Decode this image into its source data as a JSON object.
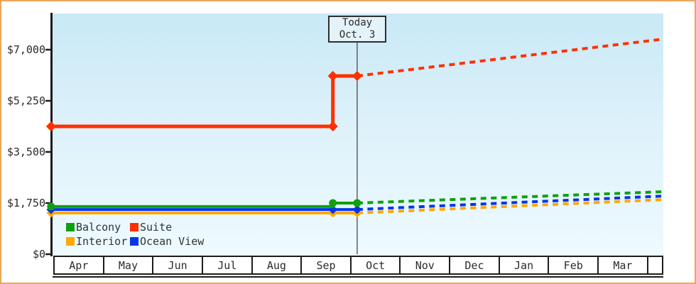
{
  "frame": {
    "border_color": "#eaa75c"
  },
  "chart_data": {
    "type": "line",
    "title": "",
    "description": "Cruise cabin price history and dashed price forecast by cabin category",
    "x_axis": {
      "categories": [
        "Apr",
        "May",
        "Jun",
        "Jul",
        "Aug",
        "Sep",
        "Oct",
        "Nov",
        "Dec",
        "Jan",
        "Feb",
        "Mar"
      ]
    },
    "y_axis": {
      "tick_labels": [
        "$0",
        "$1,750",
        "$3,500",
        "$5,250",
        "$7,000"
      ],
      "tick_values": [
        0,
        1750,
        3500,
        5250,
        7000
      ],
      "ylim": [
        0,
        8300
      ]
    },
    "grid": "off",
    "legend_position": "bottom-left-inside",
    "annotation_today": {
      "line1": "Today",
      "line2": "Oct. 3",
      "month_index": 6.11
    },
    "series": [
      {
        "name": "Interior",
        "color": "#ffa800",
        "marker": "diamond",
        "solid": [
          [
            -0.07,
            1410
          ],
          [
            6.11,
            1410
          ]
        ],
        "forecast": [
          [
            6.11,
            1410
          ],
          [
            12.3,
            1870
          ]
        ],
        "markers": [
          [
            -0.07,
            1410
          ],
          [
            5.62,
            1410
          ],
          [
            6.11,
            1410
          ]
        ]
      },
      {
        "name": "Ocean View",
        "color": "#0535e8",
        "marker": "diamond",
        "solid": [
          [
            -0.07,
            1530
          ],
          [
            6.11,
            1530
          ]
        ],
        "forecast": [
          [
            6.11,
            1530
          ],
          [
            12.3,
            1990
          ]
        ],
        "markers": [
          [
            -0.07,
            1530
          ],
          [
            5.62,
            1530
          ],
          [
            6.11,
            1530
          ]
        ]
      },
      {
        "name": "Balcony",
        "color": "#0fa00f",
        "marker": "circle",
        "solid": [
          [
            -0.07,
            1630
          ],
          [
            5.62,
            1630
          ],
          [
            5.62,
            1750
          ],
          [
            6.11,
            1750
          ]
        ],
        "forecast": [
          [
            6.11,
            1750
          ],
          [
            12.3,
            2140
          ]
        ],
        "markers": [
          [
            -0.07,
            1630
          ],
          [
            5.62,
            1750
          ],
          [
            6.11,
            1750
          ]
        ]
      },
      {
        "name": "Suite",
        "color": "#ff3000",
        "marker": "diamond",
        "width": 5,
        "msize": 10,
        "solid": [
          [
            -0.07,
            4375
          ],
          [
            5.62,
            4375
          ],
          [
            5.62,
            6100
          ],
          [
            6.11,
            6100
          ]
        ],
        "forecast": [
          [
            6.11,
            6100
          ],
          [
            12.3,
            7365
          ]
        ],
        "markers": [
          [
            -0.07,
            4375
          ],
          [
            5.62,
            4375
          ],
          [
            5.62,
            6100
          ],
          [
            6.11,
            6100
          ]
        ]
      }
    ],
    "legend": {
      "items": [
        {
          "label": "Balcony",
          "color": "#0fa00f"
        },
        {
          "label": "Suite",
          "color": "#ff3000"
        },
        {
          "label": "Interior",
          "color": "#ffa800"
        },
        {
          "label": "Ocean View",
          "color": "#0535e8"
        }
      ]
    }
  }
}
